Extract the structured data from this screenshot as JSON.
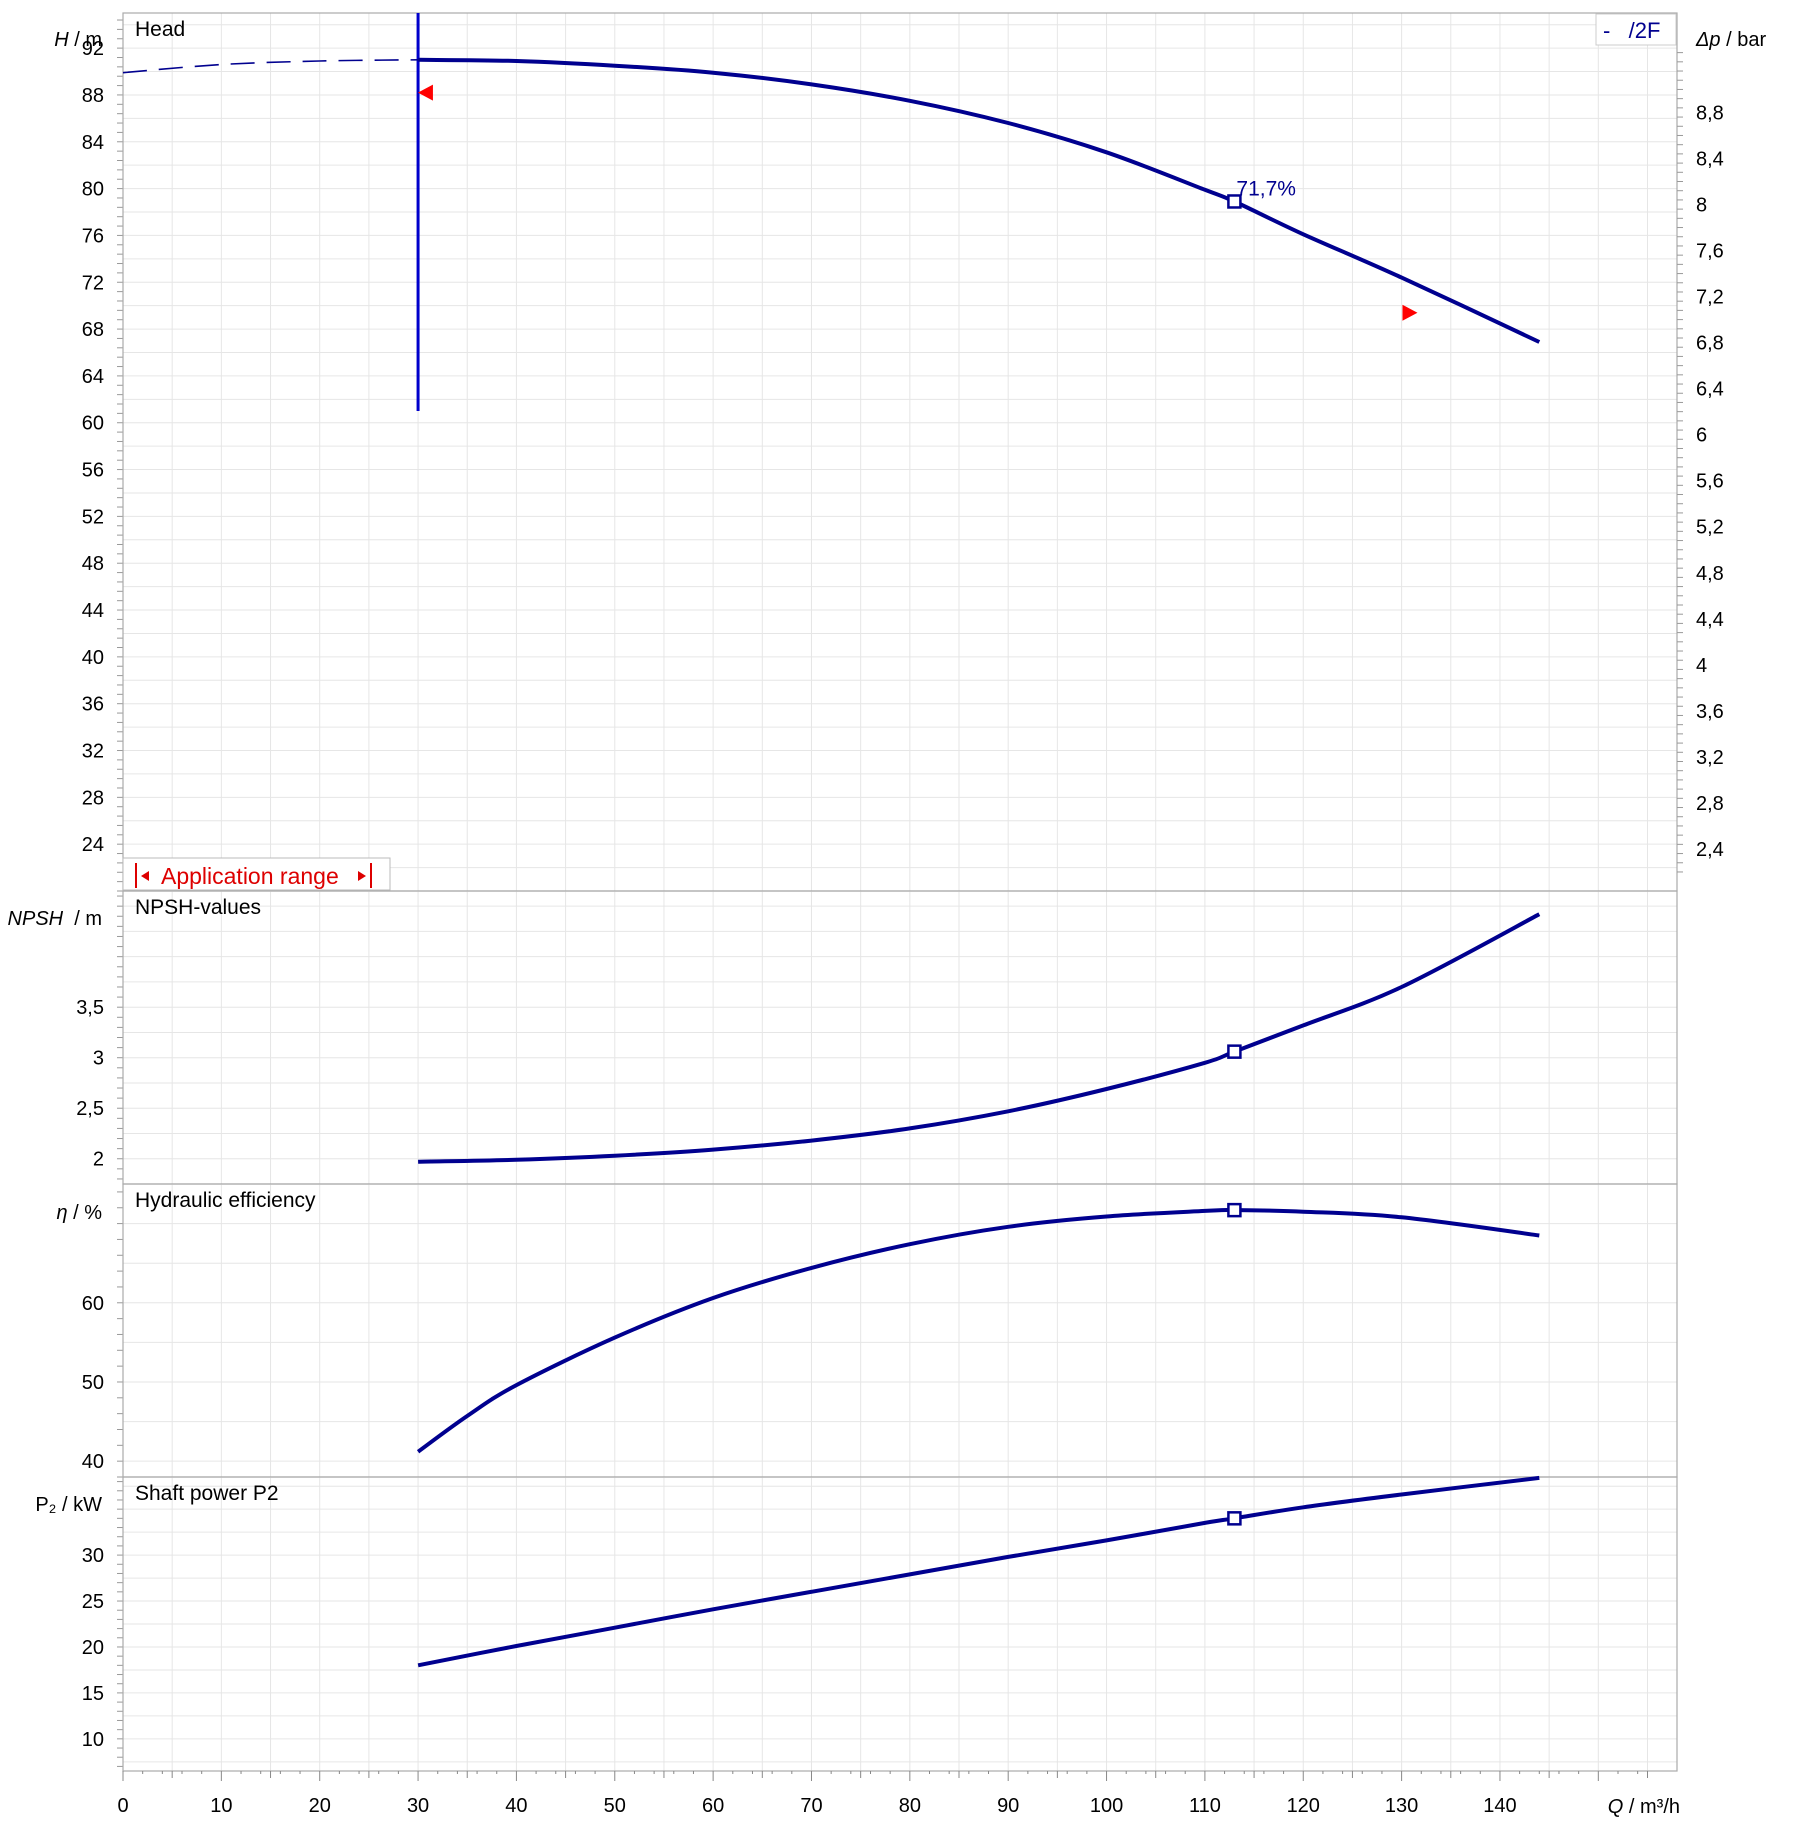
{
  "chart_data": [
    {
      "type": "line",
      "panel": "head",
      "title": "Head",
      "ylabel": "H / m",
      "ylabel_italic": "H",
      "ylabel_unit": " / m",
      "ylim": [
        20,
        95
      ],
      "yticks": [
        24,
        28,
        32,
        36,
        40,
        44,
        48,
        52,
        56,
        60,
        64,
        68,
        72,
        76,
        80,
        84,
        88,
        92
      ],
      "y2label_italic": "Δp",
      "y2label_unit": " / bar",
      "y2ticks": [
        "8,8",
        "8,4",
        "8",
        "7,6",
        "7,2",
        "6,8",
        "6,4",
        "6",
        "5,6",
        "5,2",
        "4,8",
        "4,4",
        "4",
        "3,6",
        "3,2",
        "2,8",
        "2,4"
      ],
      "y2tick_values": [
        8.8,
        8.4,
        8.0,
        7.6,
        7.2,
        6.8,
        6.4,
        6.0,
        5.6,
        5.2,
        4.8,
        4.4,
        4.0,
        3.6,
        3.2,
        2.8,
        2.4
      ],
      "y2_head_per_bar": 9.83,
      "legend": "-   /2F",
      "series": [
        {
          "name": "/2F",
          "style": "solid",
          "x": [
            30,
            40,
            50,
            60,
            70,
            80,
            90,
            100,
            110,
            113,
            120,
            130,
            144
          ],
          "y": [
            91.0,
            90.9,
            90.5,
            89.9,
            88.9,
            87.5,
            85.6,
            83.1,
            79.9,
            78.9,
            76.1,
            72.4,
            66.9
          ]
        },
        {
          "name": "dashed",
          "style": "dashed",
          "x": [
            0,
            10,
            20,
            30
          ],
          "y": [
            89.9,
            90.6,
            90.9,
            91.0
          ]
        }
      ],
      "operating_point": {
        "x": 113,
        "y": 78.9,
        "label": "71,7%"
      },
      "min_flow_line": {
        "x": 30,
        "y_from": 61,
        "y_to": 95
      },
      "markers": [
        {
          "x": 30.8,
          "y": 88.2,
          "direction": "left"
        },
        {
          "x": 130.8,
          "y": 69.4,
          "direction": "right"
        }
      ],
      "application_range_label": "Application range",
      "application_range_x": [
        1.5,
        25.5
      ]
    },
    {
      "type": "line",
      "panel": "npsh",
      "title": "NPSH-values",
      "ylabel_italic": "NPSH",
      "ylabel_unit": "  / m",
      "ylim": [
        1.75,
        4.65
      ],
      "yticks": [
        2,
        2.5,
        3,
        3.5
      ],
      "ytick_labels": [
        "2",
        "2,5",
        "3",
        "3,5"
      ],
      "series": [
        {
          "name": "/2F",
          "x": [
            30,
            40,
            50,
            60,
            70,
            80,
            90,
            100,
            110,
            113,
            120,
            130,
            144
          ],
          "y": [
            1.97,
            1.99,
            2.03,
            2.09,
            2.18,
            2.3,
            2.47,
            2.69,
            2.95,
            3.06,
            3.32,
            3.7,
            4.42
          ]
        }
      ],
      "operating_point": {
        "x": 113,
        "y": 3.06
      }
    },
    {
      "type": "line",
      "panel": "efficiency",
      "title": "Hydraulic efficiency",
      "ylabel_italic": "η",
      "ylabel_unit": " / %",
      "ylim": [
        38,
        75
      ],
      "yticks": [
        40,
        50,
        60
      ],
      "ytick_labels": [
        "40",
        "50",
        "60"
      ],
      "series": [
        {
          "name": "/2F",
          "x": [
            30,
            35,
            40,
            50,
            60,
            70,
            80,
            90,
            100,
            110,
            113,
            120,
            130,
            144
          ],
          "y": [
            41.2,
            45.7,
            49.6,
            55.6,
            60.6,
            64.4,
            67.4,
            69.6,
            70.9,
            71.6,
            71.7,
            71.5,
            70.8,
            68.5
          ]
        }
      ],
      "operating_point": {
        "x": 113,
        "y": 71.7,
        "label": "71,7%"
      }
    },
    {
      "type": "line",
      "panel": "power",
      "title": "Shaft power P2",
      "ylabel": "P₂ / kW",
      "ylim": [
        6.5,
        38.5
      ],
      "yticks": [
        10,
        15,
        20,
        25,
        30
      ],
      "ytick_labels": [
        "10",
        "15",
        "20",
        "25",
        "30"
      ],
      "series": [
        {
          "name": "/2F",
          "x": [
            30,
            40,
            50,
            60,
            70,
            80,
            90,
            100,
            110,
            113,
            120,
            130,
            144
          ],
          "y": [
            18.0,
            20.1,
            22.1,
            24.1,
            26.0,
            27.9,
            29.8,
            31.6,
            33.5,
            34.0,
            35.2,
            36.6,
            38.4
          ]
        }
      ],
      "operating_point": {
        "x": 113,
        "y": 34.0
      }
    }
  ],
  "x_axis": {
    "label_italic": "Q",
    "label_unit": " / m³/h",
    "xlim": [
      0,
      158
    ],
    "ticks": [
      0,
      10,
      20,
      30,
      40,
      50,
      60,
      70,
      80,
      90,
      100,
      110,
      120,
      130,
      140
    ]
  },
  "colors": {
    "curve": "#00008f",
    "min_flow_line": "#0000cc",
    "marker": "#ff0000",
    "application_range": "#dd0000",
    "grid": "#e6e6e6",
    "frame": "#aaaaaa",
    "text": "#000000"
  }
}
